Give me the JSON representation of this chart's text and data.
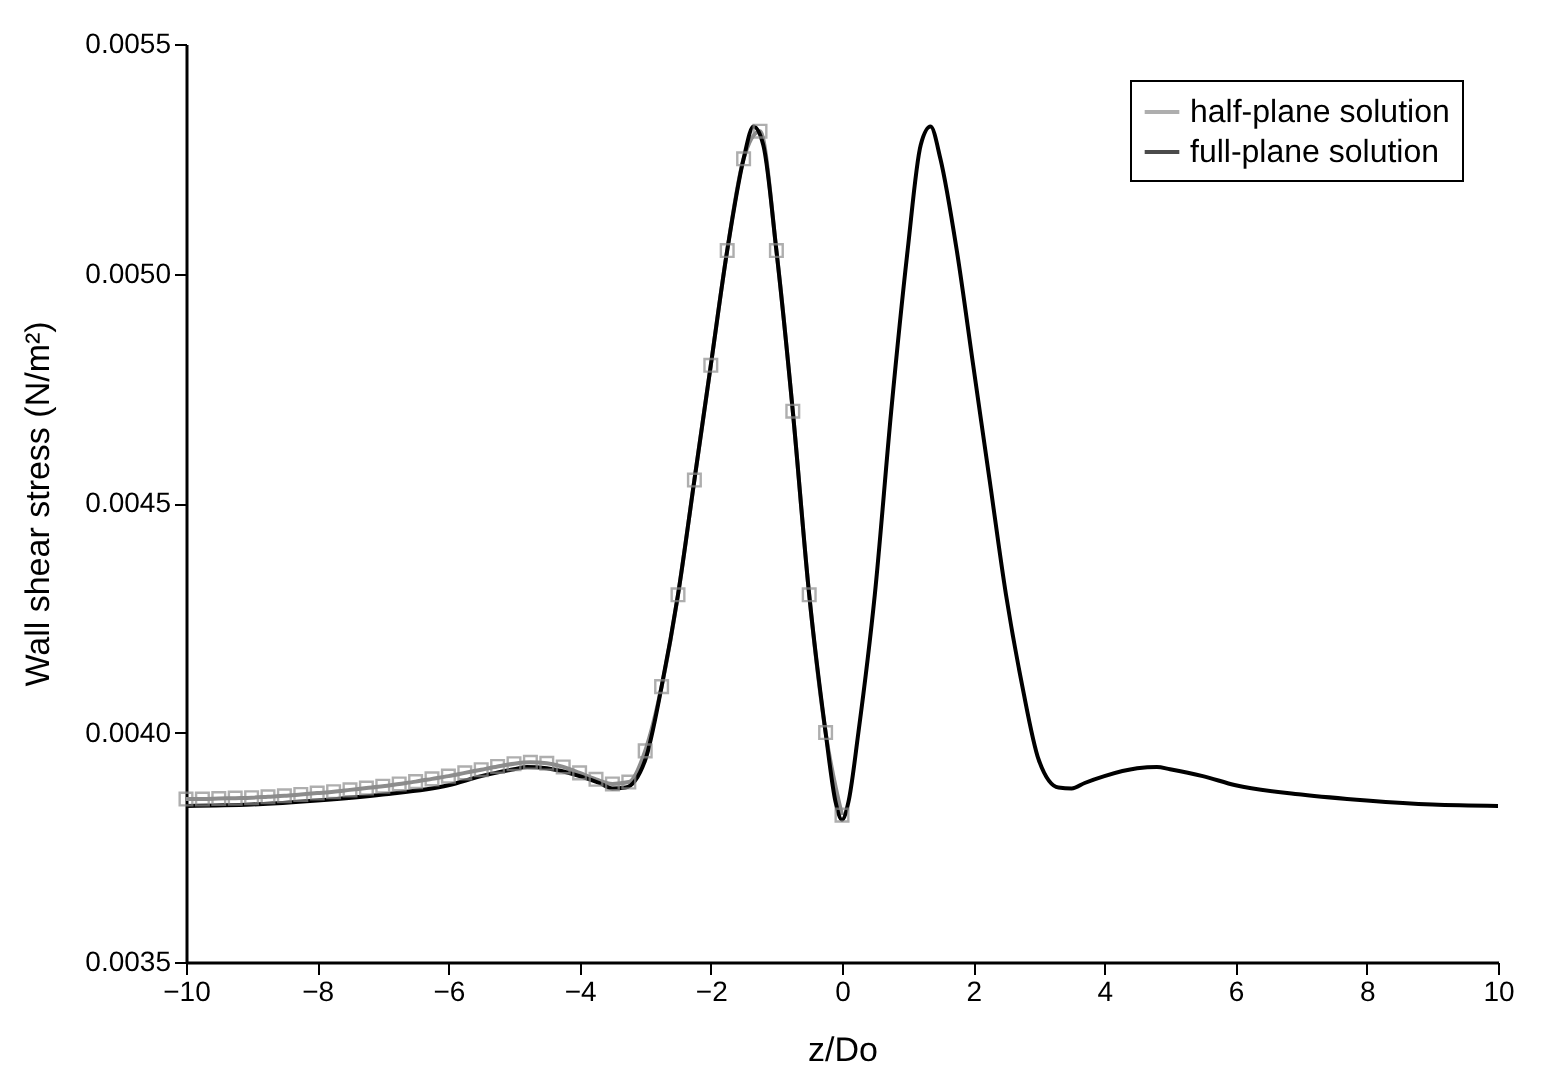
{
  "chart_data": {
    "type": "line",
    "xlabel": "z/Do",
    "ylabel": "Wall shear stress (N/m²)",
    "xlim": [
      -10,
      10
    ],
    "xticks": [
      -10,
      -8,
      -6,
      -4,
      -2,
      0,
      2,
      4,
      6,
      8,
      10
    ],
    "ylim": [
      0.0035,
      0.0055
    ],
    "yticks": [
      0.0035,
      {
        "value": 0.004,
        "label": "0.0040"
      },
      0.0045,
      {
        "value": 0.005,
        "label": "0.0050"
      },
      0.0055
    ],
    "grid": false,
    "legend": "top right",
    "series": [
      {
        "name": "half-plane solution",
        "color": "#8c8c8c",
        "marker": "square",
        "x": [
          -10,
          -9.75,
          -9.5,
          -9.25,
          -9,
          -8.75,
          -8.5,
          -8.25,
          -8,
          -7.75,
          -7.5,
          -7.25,
          -7,
          -6.75,
          -6.5,
          -6.25,
          -6,
          -5.75,
          -5.5,
          -5.25,
          -5,
          -4.75,
          -4.5,
          -4.25,
          -4,
          -3.75,
          -3.5,
          -3.25,
          -3,
          -2.75,
          -2.5,
          -2.25,
          -2,
          -1.75,
          -1.5,
          -1.25,
          -1,
          -0.75,
          -0.5,
          -0.25,
          0
        ],
        "values": [
          0.003855,
          0.003855,
          0.003856,
          0.003857,
          0.003858,
          0.00386,
          0.003862,
          0.003865,
          0.003868,
          0.003871,
          0.003875,
          0.003879,
          0.003883,
          0.003888,
          0.003893,
          0.003899,
          0.003905,
          0.003912,
          0.003919,
          0.003926,
          0.003932,
          0.003935,
          0.003933,
          0.003925,
          0.003912,
          0.003898,
          0.003888,
          0.003892,
          0.00396,
          0.0041,
          0.0043,
          0.00455,
          0.0048,
          0.00505,
          0.00525,
          0.00531,
          0.00505,
          0.0047,
          0.0043,
          0.004,
          0.00382
        ]
      },
      {
        "name": "full-plane solution",
        "color": "#000000",
        "marker": "none",
        "x": [
          -10,
          -9,
          -8,
          -7,
          -6,
          -5.5,
          -5,
          -4.8,
          -4.5,
          -4,
          -3.7,
          -3.5,
          -3.3,
          -3,
          -2.75,
          -2.5,
          -2.25,
          -2,
          -1.75,
          -1.5,
          -1.35,
          -1.2,
          -1,
          -0.75,
          -0.5,
          -0.25,
          -0.1,
          0,
          0.1,
          0.25,
          0.5,
          0.75,
          1,
          1.2,
          1.35,
          1.5,
          1.75,
          2,
          2.25,
          2.5,
          2.75,
          3,
          3.3,
          3.5,
          3.7,
          4,
          4.5,
          4.8,
          5,
          5.5,
          6,
          7,
          8,
          9,
          10
        ],
        "values": [
          0.00384,
          0.003843,
          0.003852,
          0.003865,
          0.003885,
          0.003905,
          0.00392,
          0.003925,
          0.003922,
          0.003905,
          0.00389,
          0.003878,
          0.00388,
          0.00394,
          0.0041,
          0.0043,
          0.00455,
          0.0048,
          0.00505,
          0.00525,
          0.00532,
          0.00528,
          0.00505,
          0.0047,
          0.0043,
          0.004,
          0.00385,
          0.00381,
          0.00385,
          0.004,
          0.0043,
          0.0047,
          0.00505,
          0.00528,
          0.00532,
          0.00525,
          0.00505,
          0.0048,
          0.00455,
          0.0043,
          0.0041,
          0.00394,
          0.00388,
          0.003878,
          0.00389,
          0.003905,
          0.003922,
          0.003925,
          0.00392,
          0.003905,
          0.003885,
          0.003865,
          0.003852,
          0.003843,
          0.00384
        ]
      }
    ]
  }
}
